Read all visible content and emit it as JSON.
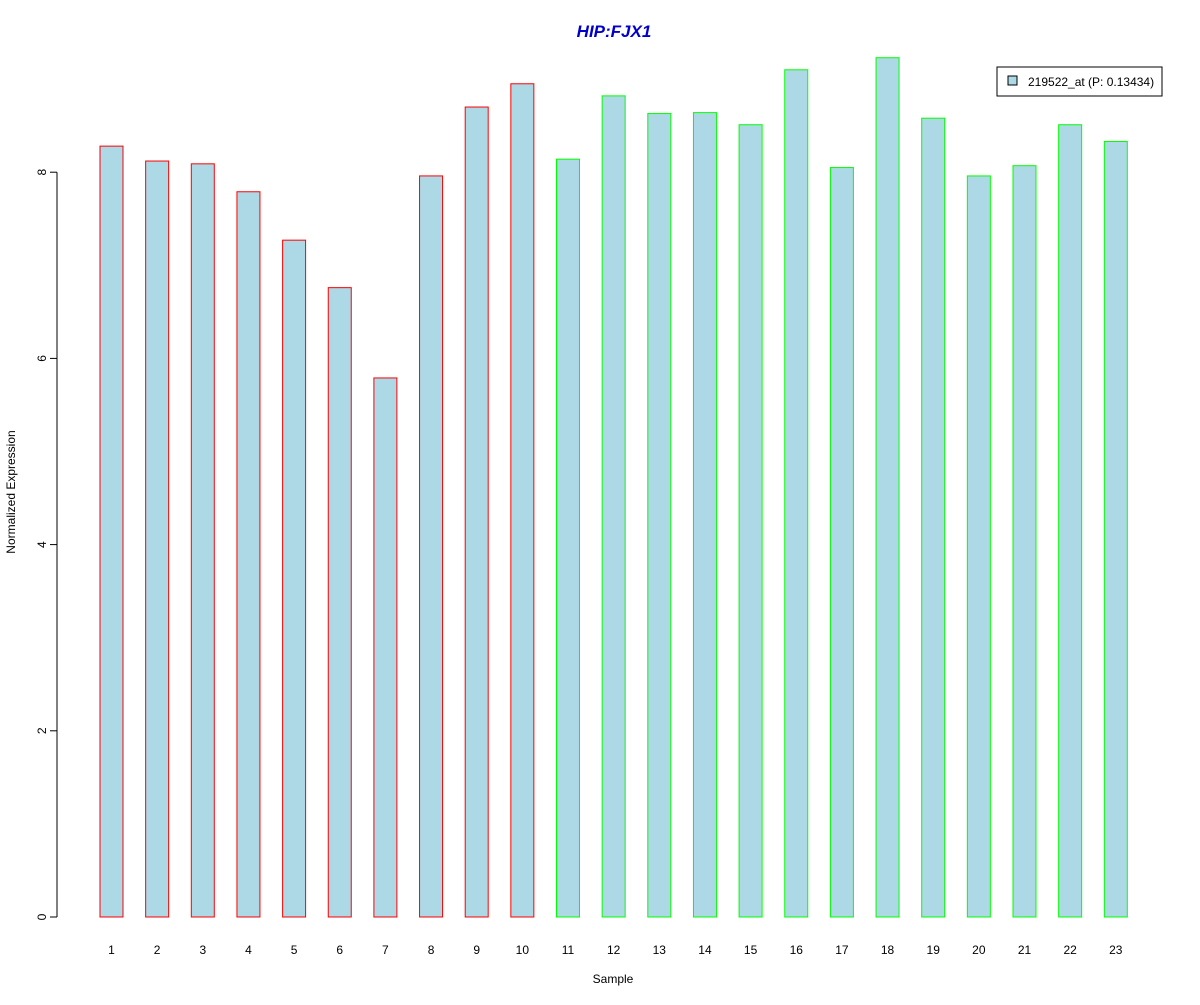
{
  "chart_data": {
    "type": "bar",
    "title": "HIP:FJX1",
    "xlabel": "Sample",
    "ylabel": "Normalized Expression",
    "categories": [
      "1",
      "2",
      "3",
      "4",
      "5",
      "6",
      "7",
      "8",
      "9",
      "10",
      "11",
      "12",
      "13",
      "14",
      "15",
      "16",
      "17",
      "18",
      "19",
      "20",
      "21",
      "22",
      "23"
    ],
    "series": [
      {
        "name": "219522_at (P: 0.13434)",
        "values": [
          8.28,
          8.12,
          8.09,
          7.79,
          7.27,
          6.76,
          5.79,
          7.96,
          8.7,
          8.95,
          8.14,
          8.82,
          8.63,
          8.64,
          8.51,
          9.1,
          8.05,
          9.23,
          8.58,
          7.96,
          8.07,
          8.51,
          8.33
        ],
        "fill_color": "#ADD8E6"
      }
    ],
    "groups": [
      {
        "samples": [
          1,
          10
        ],
        "border_color": "#FF0000"
      },
      {
        "samples": [
          11,
          23
        ],
        "border_color": "#00FF00"
      }
    ],
    "y_ticks": [
      0,
      2,
      4,
      6,
      8
    ],
    "ylim": [
      0,
      9.5
    ],
    "grid": false,
    "legend_position": "top-right",
    "title_color": "#0000CC"
  }
}
